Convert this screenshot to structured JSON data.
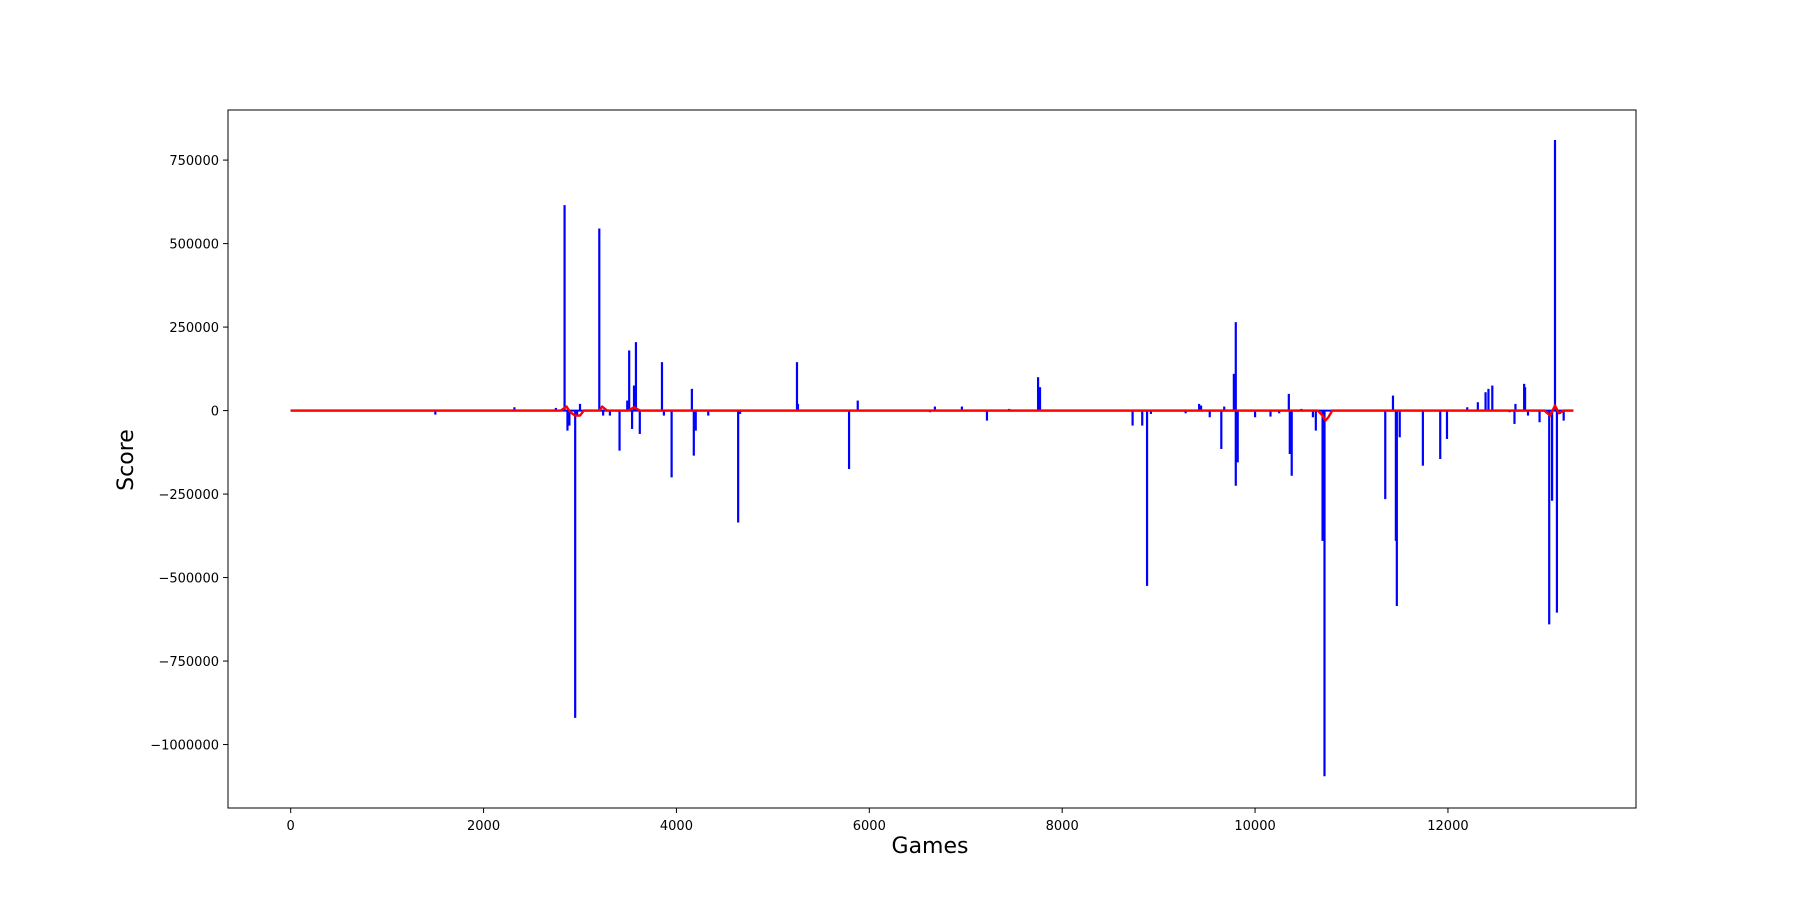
{
  "chart_data": {
    "type": "line",
    "title": "",
    "xlabel": "Games",
    "ylabel": "Score",
    "xlim": [
      -650,
      13950
    ],
    "ylim": [
      -1190000,
      900000
    ],
    "xticks": [
      0,
      2000,
      4000,
      6000,
      8000,
      10000,
      12000
    ],
    "yticks": [
      750000,
      500000,
      250000,
      0,
      -250000,
      -500000,
      -750000,
      -1000000
    ],
    "ytick_labels": [
      "750000",
      "500000",
      "250000",
      "0",
      "−250000",
      "−500000",
      "−750000",
      "−1000000"
    ],
    "grid": false,
    "legend": "none",
    "series": [
      {
        "color": "#0000ff",
        "x_range": [
          0,
          13300
        ],
        "spikes": [
          [
            1500,
            -12000
          ],
          [
            2320,
            10000
          ],
          [
            2750,
            8000
          ],
          [
            2840,
            615000
          ],
          [
            2870,
            -60000
          ],
          [
            2890,
            -45000
          ],
          [
            2950,
            -920000
          ],
          [
            2970,
            -15000
          ],
          [
            3000,
            20000
          ],
          [
            3200,
            545000
          ],
          [
            3240,
            -15000
          ],
          [
            3310,
            -15000
          ],
          [
            3410,
            -120000
          ],
          [
            3490,
            30000
          ],
          [
            3510,
            180000
          ],
          [
            3540,
            -55000
          ],
          [
            3560,
            75000
          ],
          [
            3580,
            205000
          ],
          [
            3620,
            -70000
          ],
          [
            3850,
            145000
          ],
          [
            3870,
            -15000
          ],
          [
            3950,
            -200000
          ],
          [
            4160,
            65000
          ],
          [
            4180,
            -135000
          ],
          [
            4200,
            -60000
          ],
          [
            4330,
            -15000
          ],
          [
            4640,
            -335000
          ],
          [
            4660,
            -10000
          ],
          [
            5250,
            145000
          ],
          [
            5260,
            20000
          ],
          [
            5790,
            -175000
          ],
          [
            5880,
            30000
          ],
          [
            6630,
            -5000
          ],
          [
            6680,
            12000
          ],
          [
            6960,
            12000
          ],
          [
            7220,
            -30000
          ],
          [
            7450,
            5000
          ],
          [
            7750,
            100000
          ],
          [
            7770,
            70000
          ],
          [
            8730,
            -45000
          ],
          [
            8830,
            -45000
          ],
          [
            8880,
            -525000
          ],
          [
            8920,
            -10000
          ],
          [
            9280,
            -8000
          ],
          [
            9420,
            20000
          ],
          [
            9440,
            15000
          ],
          [
            9530,
            -20000
          ],
          [
            9650,
            -115000
          ],
          [
            9680,
            12000
          ],
          [
            9780,
            110000
          ],
          [
            9800,
            265000
          ],
          [
            9800,
            -225000
          ],
          [
            9820,
            -155000
          ],
          [
            10000,
            -20000
          ],
          [
            10160,
            -18000
          ],
          [
            10250,
            -8000
          ],
          [
            10350,
            50000
          ],
          [
            10360,
            -130000
          ],
          [
            10380,
            -195000
          ],
          [
            10480,
            5000
          ],
          [
            10600,
            -20000
          ],
          [
            10630,
            -60000
          ],
          [
            10700,
            -390000
          ],
          [
            10720,
            -1095000
          ],
          [
            11350,
            -265000
          ],
          [
            11430,
            45000
          ],
          [
            11460,
            -390000
          ],
          [
            11470,
            -585000
          ],
          [
            11500,
            -80000
          ],
          [
            11740,
            -165000
          ],
          [
            11920,
            -145000
          ],
          [
            11990,
            -85000
          ],
          [
            12200,
            10000
          ],
          [
            12310,
            25000
          ],
          [
            12390,
            55000
          ],
          [
            12420,
            65000
          ],
          [
            12460,
            75000
          ],
          [
            12640,
            -5000
          ],
          [
            12690,
            -40000
          ],
          [
            12700,
            20000
          ],
          [
            12790,
            80000
          ],
          [
            12800,
            70000
          ],
          [
            12830,
            -15000
          ],
          [
            12950,
            -35000
          ],
          [
            13050,
            -640000
          ],
          [
            13080,
            -270000
          ],
          [
            13110,
            810000
          ],
          [
            13130,
            -605000
          ],
          [
            13160,
            -10000
          ],
          [
            13200,
            -30000
          ]
        ]
      },
      {
        "color": "#ff0000",
        "x_range": [
          0,
          13300
        ],
        "points": [
          [
            0,
            0
          ],
          [
            2800,
            0
          ],
          [
            2860,
            12000
          ],
          [
            2900,
            -5000
          ],
          [
            2950,
            -15000
          ],
          [
            3000,
            -15000
          ],
          [
            3040,
            0
          ],
          [
            3200,
            0
          ],
          [
            3230,
            12000
          ],
          [
            3280,
            0
          ],
          [
            3500,
            0
          ],
          [
            3560,
            10000
          ],
          [
            3620,
            0
          ],
          [
            10650,
            0
          ],
          [
            10700,
            -15000
          ],
          [
            10730,
            -30000
          ],
          [
            10760,
            -20000
          ],
          [
            10800,
            0
          ],
          [
            13000,
            0
          ],
          [
            13060,
            -15000
          ],
          [
            13110,
            15000
          ],
          [
            13150,
            -8000
          ],
          [
            13200,
            0
          ],
          [
            13300,
            0
          ]
        ]
      }
    ]
  }
}
